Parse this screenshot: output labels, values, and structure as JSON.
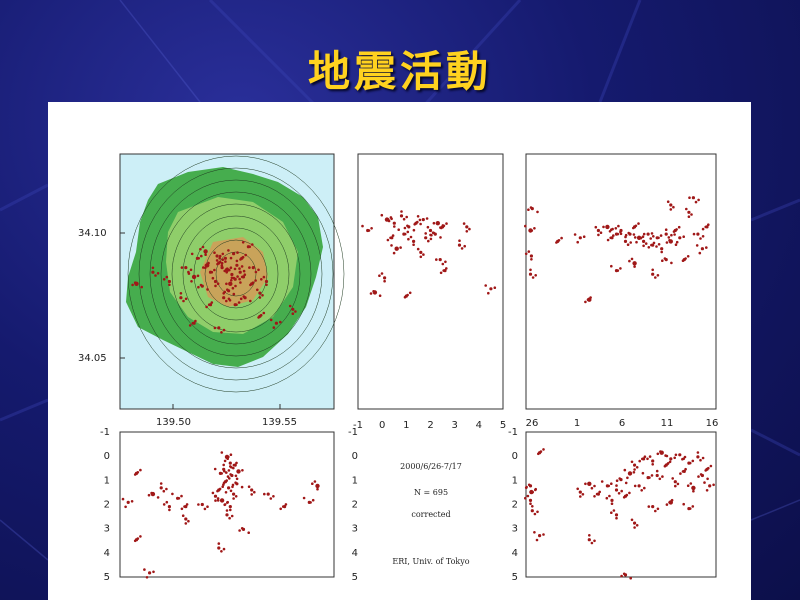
{
  "slide": {
    "title": "地震活動"
  },
  "colors": {
    "background": "#151a6e",
    "title": "#ffd21f",
    "event": "#a01818",
    "sea": "#cdeff7",
    "land": "#3aa64a"
  },
  "chart_data": [
    {
      "panel": "map",
      "type": "scatter",
      "x_ticks": [
        "139.50",
        "139.55"
      ],
      "y_ticks": [
        "34.10",
        "34.05"
      ],
      "xlim": [
        139.46,
        139.59
      ],
      "ylim": [
        34.025,
        34.135
      ],
      "points": [
        [
          139.525,
          34.085
        ],
        [
          139.528,
          34.083
        ],
        [
          139.522,
          34.086
        ],
        [
          139.53,
          34.081
        ],
        [
          139.52,
          34.088
        ],
        [
          139.533,
          34.084
        ],
        [
          139.518,
          34.08
        ],
        [
          139.527,
          34.079
        ],
        [
          139.535,
          34.082
        ],
        [
          139.515,
          34.084
        ],
        [
          139.524,
          34.09
        ],
        [
          139.531,
          34.087
        ],
        [
          139.51,
          34.078
        ],
        [
          139.54,
          34.079
        ],
        [
          139.505,
          34.082
        ],
        [
          139.545,
          34.075
        ],
        [
          139.5,
          34.086
        ],
        [
          139.515,
          34.07
        ],
        [
          139.53,
          34.07
        ],
        [
          139.49,
          34.08
        ],
        [
          139.48,
          34.084
        ],
        [
          139.47,
          34.079
        ],
        [
          139.545,
          34.065
        ],
        [
          139.555,
          34.062
        ],
        [
          139.565,
          34.068
        ],
        [
          139.52,
          34.06
        ],
        [
          139.505,
          34.062
        ],
        [
          139.538,
          34.095
        ],
        [
          139.512,
          34.093
        ],
        [
          139.497,
          34.073
        ],
        [
          139.526,
          34.076
        ],
        [
          139.534,
          34.09
        ],
        [
          139.529,
          34.092
        ],
        [
          139.519,
          34.091
        ],
        [
          139.541,
          34.086
        ],
        [
          139.513,
          34.087
        ],
        [
          139.507,
          34.09
        ],
        [
          139.549,
          34.08
        ],
        [
          139.523,
          34.073
        ],
        [
          139.536,
          34.073
        ]
      ]
    },
    {
      "panel": "lat-depth",
      "type": "scatter",
      "x_ticks": [
        "-1",
        "0",
        "1",
        "2",
        "3",
        "4",
        "5"
      ],
      "xlim": [
        -1,
        5
      ],
      "ylim": [
        -1,
        6
      ],
      "points": [
        [
          0.2,
          0.8
        ],
        [
          0.5,
          0.9
        ],
        [
          0.8,
          0.7
        ],
        [
          1.1,
          1.0
        ],
        [
          1.4,
          0.9
        ],
        [
          1.7,
          0.8
        ],
        [
          2.0,
          1.1
        ],
        [
          2.3,
          0.9
        ],
        [
          0.4,
          1.3
        ],
        [
          0.9,
          1.2
        ],
        [
          1.3,
          1.4
        ],
        [
          1.8,
          1.3
        ],
        [
          2.2,
          1.2
        ],
        [
          2.5,
          1.0
        ],
        [
          0.6,
          1.6
        ],
        [
          1.6,
          1.7
        ],
        [
          2.4,
          1.9
        ],
        [
          2.6,
          2.2
        ],
        [
          -0.6,
          1.1
        ],
        [
          0.1,
          2.4
        ],
        [
          3.2,
          1.5
        ],
        [
          -0.3,
          2.8
        ],
        [
          1.0,
          2.9
        ],
        [
          4.5,
          2.7
        ],
        [
          3.5,
          1.0
        ]
      ]
    },
    {
      "panel": "time-lon",
      "type": "scatter",
      "x_ticks": [
        "26",
        "1",
        "6",
        "11",
        "16"
      ],
      "xlim": [
        26,
        47
      ],
      "ylim": [
        -1,
        6
      ],
      "points": [
        [
          26.5,
          1.1
        ],
        [
          26.6,
          1.8
        ],
        [
          26.5,
          2.3
        ],
        [
          26.7,
          0.5
        ],
        [
          29.5,
          1.4
        ],
        [
          32.0,
          1.3
        ],
        [
          34.0,
          1.1
        ],
        [
          35.0,
          1.0
        ],
        [
          35.5,
          1.3
        ],
        [
          36.0,
          1.2
        ],
        [
          36.5,
          1.1
        ],
        [
          37.0,
          1.4
        ],
        [
          37.5,
          1.2
        ],
        [
          38.0,
          1.0
        ],
        [
          38.5,
          1.3
        ],
        [
          39.0,
          1.4
        ],
        [
          39.5,
          1.2
        ],
        [
          40.0,
          1.5
        ],
        [
          40.5,
          1.3
        ],
        [
          41.0,
          1.6
        ],
        [
          41.5,
          1.2
        ],
        [
          42.0,
          1.4
        ],
        [
          42.5,
          1.1
        ],
        [
          43.0,
          1.3
        ],
        [
          44.0,
          0.6
        ],
        [
          45.0,
          1.2
        ],
        [
          46.0,
          1.0
        ],
        [
          36.0,
          2.2
        ],
        [
          38.0,
          2.0
        ],
        [
          40.0,
          2.3
        ],
        [
          41.5,
          1.9
        ],
        [
          43.5,
          1.9
        ],
        [
          45.5,
          1.6
        ],
        [
          42.0,
          0.4
        ],
        [
          44.5,
          0.2
        ],
        [
          33.0,
          3.0
        ]
      ]
    },
    {
      "panel": "lon-depth",
      "type": "scatter",
      "x_ticks": [],
      "y_ticks": [
        "-1",
        "0",
        "1",
        "2",
        "3",
        "4",
        "5"
      ],
      "xlim": [
        139.46,
        139.59
      ],
      "ylim": [
        -1,
        6
      ],
      "points": [
        [
          139.525,
          0.2
        ],
        [
          139.527,
          0.5
        ],
        [
          139.523,
          0.8
        ],
        [
          139.528,
          1.1
        ],
        [
          139.524,
          1.4
        ],
        [
          139.526,
          1.7
        ],
        [
          139.529,
          2.0
        ],
        [
          139.522,
          2.3
        ],
        [
          139.53,
          0.6
        ],
        [
          139.521,
          1.0
        ],
        [
          139.527,
          2.6
        ],
        [
          139.525,
          3.0
        ],
        [
          139.531,
          1.5
        ],
        [
          139.52,
          1.8
        ],
        [
          139.532,
          0.9
        ],
        [
          139.518,
          2.1
        ],
        [
          139.51,
          2.5
        ],
        [
          139.5,
          2.6
        ],
        [
          139.495,
          2.2
        ],
        [
          139.49,
          2.6
        ],
        [
          139.485,
          1.7
        ],
        [
          139.48,
          2.0
        ],
        [
          139.47,
          1.0
        ],
        [
          139.465,
          2.4
        ],
        [
          139.54,
          1.8
        ],
        [
          139.55,
          2.0
        ],
        [
          139.56,
          2.6
        ],
        [
          139.575,
          2.4
        ],
        [
          139.58,
          1.6
        ],
        [
          139.52,
          4.6
        ],
        [
          139.535,
          3.7
        ],
        [
          139.47,
          4.2
        ],
        [
          139.478,
          5.8
        ],
        [
          139.5,
          3.2
        ]
      ]
    },
    {
      "panel": "time-depth",
      "type": "scatter",
      "x_ticks": [],
      "xlim": [
        26,
        47
      ],
      "ylim": [
        -1,
        6
      ],
      "points": [
        [
          26.6,
          1.9
        ],
        [
          26.5,
          2.3
        ],
        [
          26.7,
          2.8
        ],
        [
          26.5,
          1.6
        ],
        [
          27.5,
          0.0
        ],
        [
          27.5,
          4.0
        ],
        [
          32.0,
          1.9
        ],
        [
          33.0,
          1.5
        ],
        [
          34.0,
          2.0
        ],
        [
          35.0,
          1.6
        ],
        [
          35.5,
          2.3
        ],
        [
          36.0,
          1.8
        ],
        [
          36.5,
          1.3
        ],
        [
          37.0,
          2.1
        ],
        [
          37.5,
          1.0
        ],
        [
          38.0,
          0.6
        ],
        [
          38.5,
          1.6
        ],
        [
          39.0,
          0.3
        ],
        [
          39.5,
          1.2
        ],
        [
          40.0,
          0.4
        ],
        [
          40.5,
          1.1
        ],
        [
          41.0,
          0.0
        ],
        [
          41.5,
          0.6
        ],
        [
          42.0,
          0.3
        ],
        [
          42.5,
          1.4
        ],
        [
          43.0,
          0.1
        ],
        [
          43.5,
          0.9
        ],
        [
          44.0,
          0.5
        ],
        [
          44.5,
          1.7
        ],
        [
          45.0,
          0.2
        ],
        [
          45.5,
          1.1
        ],
        [
          46.0,
          0.8
        ],
        [
          46.3,
          1.6
        ],
        [
          38.0,
          3.4
        ],
        [
          40.0,
          2.6
        ],
        [
          42.0,
          2.4
        ],
        [
          44.0,
          2.7
        ],
        [
          36.0,
          3.0
        ],
        [
          33.0,
          4.2
        ],
        [
          37.0,
          5.9
        ]
      ]
    }
  ],
  "annotations": {
    "period": "2000/6/26-7/17",
    "count": "N = 695",
    "status": "corrected",
    "credit": "ERI, Univ. of Tokyo"
  }
}
